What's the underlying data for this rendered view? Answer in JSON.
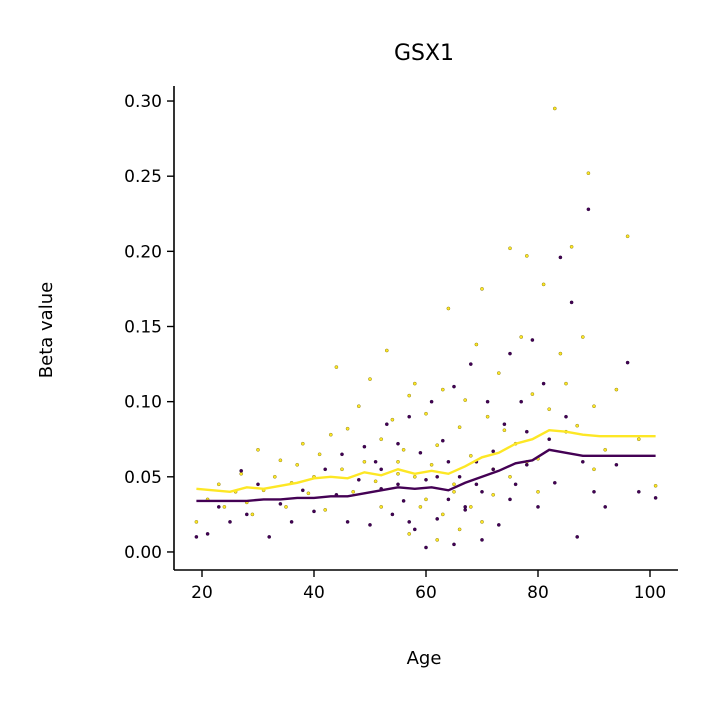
{
  "chart_data": {
    "type": "scatter",
    "title": "GSX1",
    "xlabel": "Age",
    "ylabel": "Beta value",
    "xlim": [
      15,
      105
    ],
    "ylim": [
      -0.012,
      0.31
    ],
    "x_ticks": [
      20,
      40,
      60,
      80,
      100
    ],
    "x_tick_labels": [
      "20",
      "40",
      "60",
      "80",
      "100"
    ],
    "y_ticks": [
      0.0,
      0.05,
      0.1,
      0.15,
      0.2,
      0.25,
      0.3
    ],
    "y_tick_labels": [
      "0.00",
      "0.05",
      "0.10",
      "0.15",
      "0.20",
      "0.25",
      "0.30"
    ],
    "grid": false,
    "legend": "none",
    "series": [
      {
        "color": "#fde725",
        "points": [
          [
            19,
            0.02
          ],
          [
            21,
            0.035
          ],
          [
            23,
            0.045
          ],
          [
            24,
            0.03
          ],
          [
            26,
            0.04
          ],
          [
            27,
            0.052
          ],
          [
            28,
            0.033
          ],
          [
            29,
            0.025
          ],
          [
            30,
            0.068
          ],
          [
            31,
            0.041
          ],
          [
            33,
            0.05
          ],
          [
            34,
            0.061
          ],
          [
            35,
            0.03
          ],
          [
            36,
            0.046
          ],
          [
            37,
            0.058
          ],
          [
            38,
            0.072
          ],
          [
            39,
            0.039
          ],
          [
            40,
            0.05
          ],
          [
            41,
            0.065
          ],
          [
            42,
            0.028
          ],
          [
            43,
            0.078
          ],
          [
            44,
            0.123
          ],
          [
            45,
            0.055
          ],
          [
            46,
            0.082
          ],
          [
            47,
            0.04
          ],
          [
            48,
            0.097
          ],
          [
            49,
            0.06
          ],
          [
            50,
            0.115
          ],
          [
            51,
            0.047
          ],
          [
            52,
            0.075
          ],
          [
            53,
            0.134
          ],
          [
            54,
            0.088
          ],
          [
            55,
            0.052
          ],
          [
            56,
            0.068
          ],
          [
            57,
            0.104
          ],
          [
            58,
            0.112
          ],
          [
            59,
            0.03
          ],
          [
            60,
            0.092
          ],
          [
            61,
            0.058
          ],
          [
            62,
            0.071
          ],
          [
            63,
            0.108
          ],
          [
            64,
            0.162
          ],
          [
            65,
            0.045
          ],
          [
            66,
            0.083
          ],
          [
            67,
            0.101
          ],
          [
            68,
            0.064
          ],
          [
            69,
            0.138
          ],
          [
            70,
            0.175
          ],
          [
            71,
            0.09
          ],
          [
            72,
            0.055
          ],
          [
            73,
            0.119
          ],
          [
            74,
            0.081
          ],
          [
            75,
            0.202
          ],
          [
            76,
            0.072
          ],
          [
            77,
            0.143
          ],
          [
            78,
            0.197
          ],
          [
            79,
            0.105
          ],
          [
            80,
            0.062
          ],
          [
            81,
            0.178
          ],
          [
            82,
            0.095
          ],
          [
            83,
            0.295
          ],
          [
            84,
            0.132
          ],
          [
            85,
            0.112
          ],
          [
            86,
            0.203
          ],
          [
            87,
            0.084
          ],
          [
            88,
            0.143
          ],
          [
            89,
            0.252
          ],
          [
            90,
            0.097
          ],
          [
            92,
            0.068
          ],
          [
            94,
            0.108
          ],
          [
            96,
            0.21
          ],
          [
            98,
            0.075
          ],
          [
            101,
            0.044
          ],
          [
            57,
            0.012
          ],
          [
            62,
            0.008
          ],
          [
            66,
            0.015
          ],
          [
            70,
            0.02
          ],
          [
            55,
            0.06
          ],
          [
            60,
            0.035
          ],
          [
            65,
            0.04
          ],
          [
            75,
            0.05
          ],
          [
            80,
            0.04
          ],
          [
            52,
            0.03
          ],
          [
            58,
            0.05
          ],
          [
            63,
            0.025
          ],
          [
            68,
            0.03
          ],
          [
            72,
            0.038
          ],
          [
            78,
            0.06
          ],
          [
            85,
            0.08
          ],
          [
            90,
            0.055
          ]
        ]
      },
      {
        "color": "#440154",
        "points": [
          [
            19,
            0.01
          ],
          [
            21,
            0.012
          ],
          [
            23,
            0.03
          ],
          [
            25,
            0.02
          ],
          [
            27,
            0.054
          ],
          [
            28,
            0.025
          ],
          [
            30,
            0.045
          ],
          [
            32,
            0.01
          ],
          [
            34,
            0.032
          ],
          [
            36,
            0.02
          ],
          [
            38,
            0.041
          ],
          [
            40,
            0.027
          ],
          [
            42,
            0.055
          ],
          [
            44,
            0.038
          ],
          [
            45,
            0.065
          ],
          [
            46,
            0.02
          ],
          [
            48,
            0.048
          ],
          [
            49,
            0.07
          ],
          [
            50,
            0.018
          ],
          [
            51,
            0.06
          ],
          [
            52,
            0.042
          ],
          [
            53,
            0.085
          ],
          [
            54,
            0.025
          ],
          [
            55,
            0.072
          ],
          [
            56,
            0.034
          ],
          [
            57,
            0.09
          ],
          [
            58,
            0.015
          ],
          [
            59,
            0.066
          ],
          [
            60,
            0.048
          ],
          [
            61,
            0.1
          ],
          [
            62,
            0.022
          ],
          [
            63,
            0.074
          ],
          [
            64,
            0.035
          ],
          [
            65,
            0.11
          ],
          [
            66,
            0.05
          ],
          [
            67,
            0.028
          ],
          [
            68,
            0.125
          ],
          [
            69,
            0.06
          ],
          [
            70,
            0.04
          ],
          [
            71,
            0.1
          ],
          [
            72,
            0.067
          ],
          [
            73,
            0.018
          ],
          [
            74,
            0.085
          ],
          [
            75,
            0.132
          ],
          [
            76,
            0.045
          ],
          [
            77,
            0.1
          ],
          [
            78,
            0.058
          ],
          [
            79,
            0.141
          ],
          [
            80,
            0.03
          ],
          [
            81,
            0.112
          ],
          [
            82,
            0.075
          ],
          [
            83,
            0.046
          ],
          [
            84,
            0.196
          ],
          [
            85,
            0.09
          ],
          [
            86,
            0.166
          ],
          [
            87,
            0.01
          ],
          [
            88,
            0.06
          ],
          [
            89,
            0.228
          ],
          [
            90,
            0.04
          ],
          [
            92,
            0.03
          ],
          [
            94,
            0.058
          ],
          [
            96,
            0.126
          ],
          [
            98,
            0.04
          ],
          [
            101,
            0.036
          ],
          [
            60,
            0.003
          ],
          [
            65,
            0.005
          ],
          [
            70,
            0.008
          ],
          [
            55,
            0.045
          ],
          [
            62,
            0.05
          ],
          [
            67,
            0.03
          ],
          [
            72,
            0.055
          ],
          [
            75,
            0.035
          ],
          [
            57,
            0.02
          ],
          [
            52,
            0.055
          ],
          [
            64,
            0.06
          ],
          [
            69,
            0.045
          ],
          [
            78,
            0.08
          ]
        ]
      }
    ],
    "trend_lines": [
      {
        "color": "#fde725",
        "x": [
          19,
          22,
          25,
          28,
          31,
          34,
          37,
          40,
          43,
          46,
          49,
          52,
          55,
          58,
          61,
          64,
          67,
          70,
          73,
          76,
          79,
          82,
          85,
          88,
          91,
          94,
          97,
          101
        ],
        "y": [
          0.042,
          0.041,
          0.04,
          0.043,
          0.042,
          0.044,
          0.046,
          0.049,
          0.05,
          0.049,
          0.053,
          0.051,
          0.055,
          0.052,
          0.054,
          0.052,
          0.057,
          0.063,
          0.066,
          0.072,
          0.075,
          0.081,
          0.08,
          0.078,
          0.077,
          0.077,
          0.077,
          0.077
        ]
      },
      {
        "color": "#440154",
        "x": [
          19,
          22,
          25,
          28,
          31,
          34,
          37,
          40,
          43,
          46,
          49,
          52,
          55,
          58,
          61,
          64,
          67,
          70,
          73,
          76,
          79,
          82,
          85,
          88,
          91,
          94,
          97,
          101
        ],
        "y": [
          0.034,
          0.034,
          0.034,
          0.034,
          0.035,
          0.035,
          0.036,
          0.036,
          0.037,
          0.037,
          0.039,
          0.041,
          0.043,
          0.042,
          0.043,
          0.041,
          0.046,
          0.05,
          0.054,
          0.059,
          0.061,
          0.068,
          0.066,
          0.064,
          0.064,
          0.064,
          0.064,
          0.064
        ]
      }
    ]
  }
}
